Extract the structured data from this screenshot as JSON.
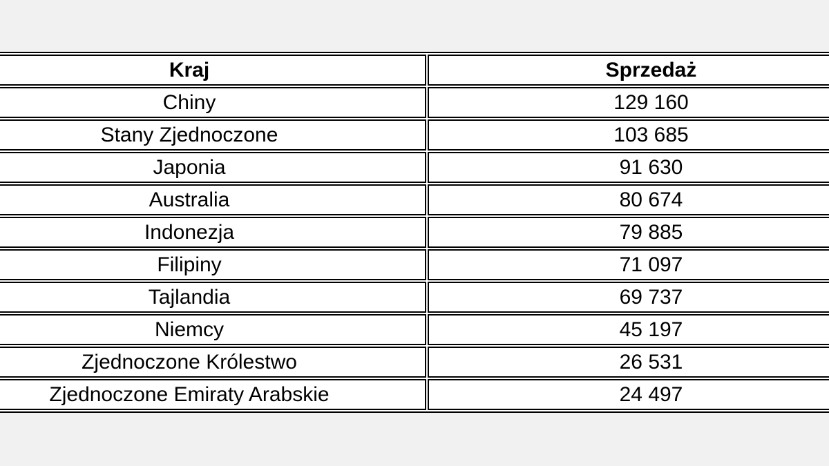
{
  "page": {
    "background_color": "#f1f1f1",
    "table_border_color": "#000000",
    "cell_background_color": "#ffffff",
    "text_color": "#000000"
  },
  "chart_data": {
    "type": "table",
    "columns": [
      "Kraj",
      "Sprzedaż"
    ],
    "rows": [
      {
        "country": "Chiny",
        "sales": "129 160"
      },
      {
        "country": "Stany Zjednoczone",
        "sales": "103 685"
      },
      {
        "country": "Japonia",
        "sales": "91 630"
      },
      {
        "country": "Australia",
        "sales": "80 674"
      },
      {
        "country": "Indonezja",
        "sales": "79 885"
      },
      {
        "country": "Filipiny",
        "sales": "71 097"
      },
      {
        "country": "Tajlandia",
        "sales": "69 737"
      },
      {
        "country": "Niemcy",
        "sales": "45 197"
      },
      {
        "country": "Zjednoczone Królestwo",
        "sales": "26 531"
      },
      {
        "country": "Zjednoczone Emiraty Arabskie",
        "sales": "24 497"
      }
    ],
    "sales_values": [
      129160,
      103685,
      91630,
      80674,
      79885,
      71097,
      69737,
      45197,
      26531,
      24497
    ]
  }
}
